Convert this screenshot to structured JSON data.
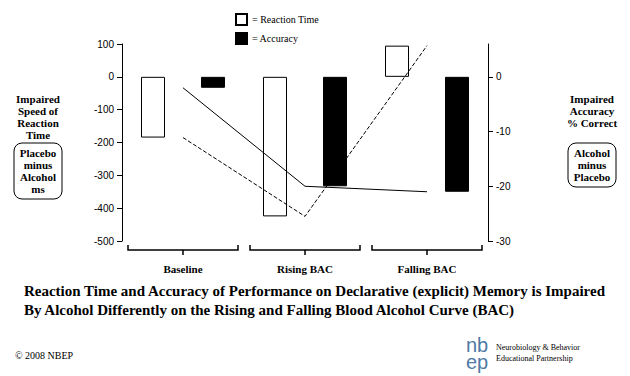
{
  "chart_data": {
    "type": "bar",
    "title": "Reaction Time and Accuracy of Performance on Declarative (explicit) Memory is Impaired\nBy Alcohol Differently on the Rising and Falling Blood Alcohol Curve (BAC)",
    "categories": [
      "Baseline",
      "Rising BAC",
      "Falling BAC"
    ],
    "series": [
      {
        "name": "= Reaction Time",
        "color": "#ffffff",
        "values": [
          -185,
          -425,
          95
        ],
        "line_style": "dashed"
      },
      {
        "name": "= Accuracy",
        "color": "#000000",
        "values": [
          -2,
          -20,
          -21
        ],
        "axis": "y2",
        "line_style": "solid"
      }
    ],
    "ylabel": [
      "Impaired\nSpeed of\nReaction\nTime",
      "Placebo\nminus\nAlcohol\nms"
    ],
    "y2label": [
      "Impaired\nAccuracy\n% Correct",
      "Alcohol\nminus\nPlacebo"
    ],
    "ylim": [
      -500,
      100
    ],
    "yticks": [
      -500,
      -400,
      -300,
      -200,
      -100,
      0,
      100
    ],
    "y2lim": [
      -30,
      6
    ],
    "y2ticks": [
      -30,
      -20,
      -10,
      0
    ],
    "grid": false,
    "legend": "top",
    "annotations": [
      "© 2008 NBEP",
      "nb",
      "ep",
      "Neurobiology & Behavior",
      "Educational Partnership"
    ]
  }
}
